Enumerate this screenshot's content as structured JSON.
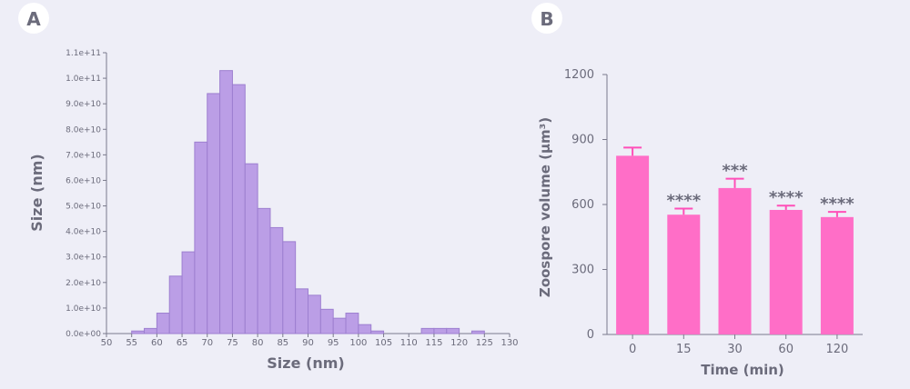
{
  "chart_data": [
    {
      "panel": "A",
      "type": "bar",
      "xlabel": "Size (nm)",
      "ylabel": "Size (nm)",
      "xlim": [
        50,
        130
      ],
      "ylim": [
        0,
        110000000000
      ],
      "xticks": [
        "50",
        "55",
        "60",
        "65",
        "70",
        "75",
        "80",
        "85",
        "90",
        "95",
        "100",
        "105",
        "110",
        "115",
        "120",
        "125",
        "130"
      ],
      "yticks": [
        "0.0e+00",
        "1.0e+10",
        "2.0e+10",
        "3.0e+10",
        "4.0e+10",
        "5.0e+10",
        "6.0e+10",
        "7.0e+10",
        "8.0e+10",
        "9.0e+10",
        "1.0e+11",
        "1.1e+11"
      ],
      "bar_width": 2.5,
      "bars": [
        {
          "x": 56.25,
          "value": 1000000000
        },
        {
          "x": 58.75,
          "value": 2000000000
        },
        {
          "x": 61.25,
          "value": 8000000000
        },
        {
          "x": 63.75,
          "value": 22500000000
        },
        {
          "x": 66.25,
          "value": 32000000000
        },
        {
          "x": 68.75,
          "value": 75000000000
        },
        {
          "x": 71.25,
          "value": 94000000000
        },
        {
          "x": 73.75,
          "value": 103000000000
        },
        {
          "x": 76.25,
          "value": 97500000000
        },
        {
          "x": 78.75,
          "value": 66500000000
        },
        {
          "x": 81.25,
          "value": 49000000000
        },
        {
          "x": 83.75,
          "value": 41500000000
        },
        {
          "x": 86.25,
          "value": 36000000000
        },
        {
          "x": 88.75,
          "value": 17500000000
        },
        {
          "x": 91.25,
          "value": 15000000000
        },
        {
          "x": 93.75,
          "value": 9500000000
        },
        {
          "x": 96.25,
          "value": 6000000000
        },
        {
          "x": 98.75,
          "value": 8000000000
        },
        {
          "x": 101.25,
          "value": 3500000000
        },
        {
          "x": 103.75,
          "value": 1000000000
        },
        {
          "x": 113.75,
          "value": 2000000000
        },
        {
          "x": 116.25,
          "value": 2000000000
        },
        {
          "x": 118.75,
          "value": 2000000000
        },
        {
          "x": 123.75,
          "value": 1000000000
        }
      ],
      "colors": {
        "fill": "#bb9ee6",
        "stroke": "#9d7fd0"
      }
    },
    {
      "panel": "B",
      "type": "bar",
      "xlabel": "Time (min)",
      "ylabel": "Zoospore volume (μm³)",
      "ylim": [
        0,
        1200
      ],
      "yticks": [
        "0",
        "300",
        "600",
        "900",
        "1200"
      ],
      "categories": [
        "0",
        "15",
        "30",
        "60",
        "120"
      ],
      "values": [
        825,
        553,
        676,
        575,
        542
      ],
      "errors": [
        38,
        28,
        43,
        20,
        24
      ],
      "significance": [
        "",
        "****",
        "***",
        "****",
        "****"
      ],
      "colors": {
        "fill": "#ff6ec7",
        "stroke": "#ff4fb8"
      }
    }
  ]
}
